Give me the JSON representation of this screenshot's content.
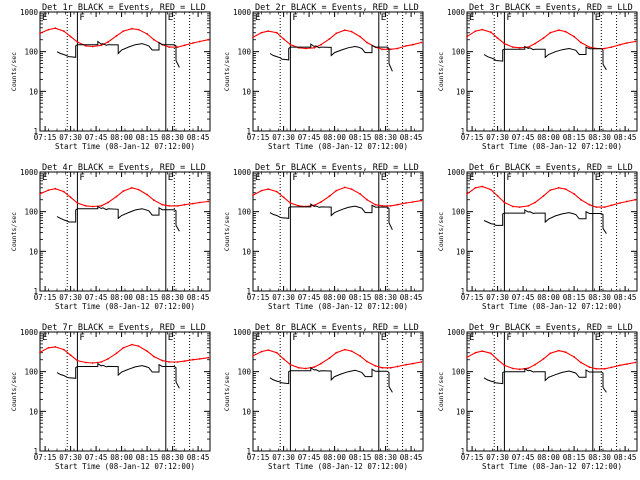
{
  "figure": {
    "colors": {
      "events": "#000000",
      "lld": "#ff0000",
      "axes": "#000000",
      "background": "#ffffff"
    },
    "shared_axes": {
      "xlabel": "Start Time (08-Jan-12 07:12:00)",
      "ylabel": "Counts/sec",
      "x_tick_labels": [
        "07:15",
        "07:30",
        "07:45",
        "08:00",
        "08:15",
        "08:30",
        "08:45"
      ],
      "x_tick_minutes": [
        3,
        18,
        33,
        48,
        63,
        78,
        93
      ],
      "xlim_minutes": [
        0,
        100
      ],
      "y_tick_labels": [
        "1",
        "10",
        "100",
        "1000"
      ],
      "y_tick_values": [
        1,
        10,
        100,
        1000
      ],
      "ylim": [
        1,
        1000
      ],
      "yscale": "log"
    },
    "markers": {
      "dotted_lines_minutes": [
        16,
        79,
        88
      ],
      "solid_lines": [
        {
          "minute": 22,
          "label": "F"
        },
        {
          "minute": 74,
          "label": "E"
        }
      ],
      "left_label": "E"
    }
  },
  "chart_data": [
    {
      "type": "line",
      "title": "Det 1r BLACK = Events, RED = LLD",
      "series": [
        {
          "name": "LLD",
          "x": [
            0,
            5,
            9,
            14,
            18,
            22,
            27,
            31,
            36,
            40,
            45,
            49,
            54,
            58,
            63,
            67,
            72,
            76,
            81,
            85,
            90,
            94,
            99
          ],
          "y": [
            290,
            360,
            390,
            330,
            240,
            175,
            140,
            135,
            145,
            175,
            250,
            330,
            380,
            360,
            280,
            200,
            150,
            130,
            130,
            145,
            165,
            180,
            200
          ]
        },
        {
          "name": "Events",
          "x": [
            10,
            12,
            14,
            16,
            17,
            21,
            21,
            22,
            34,
            34,
            36,
            37,
            39,
            40,
            46,
            46,
            48,
            52,
            56,
            60,
            62,
            64,
            66,
            70,
            70,
            72,
            74,
            79,
            80,
            80,
            82
          ],
          "y": [
            100,
            90,
            85,
            78,
            75,
            72,
            140,
            150,
            150,
            180,
            155,
            160,
            145,
            150,
            148,
            90,
            110,
            130,
            150,
            160,
            150,
            140,
            110,
            110,
            170,
            150,
            150,
            150,
            140,
            60,
            40
          ]
        }
      ]
    },
    {
      "type": "line",
      "title": "Det 2r BLACK = Events, RED = LLD",
      "series": [
        {
          "name": "LLD",
          "x": [
            0,
            5,
            9,
            14,
            18,
            22,
            27,
            31,
            36,
            40,
            45,
            49,
            54,
            58,
            63,
            67,
            72,
            76,
            81,
            85,
            90,
            94,
            99
          ],
          "y": [
            230,
            300,
            330,
            300,
            210,
            150,
            125,
            120,
            125,
            150,
            210,
            290,
            350,
            320,
            240,
            170,
            130,
            115,
            115,
            120,
            140,
            150,
            170
          ]
        },
        {
          "name": "Events",
          "x": [
            10,
            12,
            14,
            16,
            17,
            21,
            21,
            22,
            34,
            34,
            36,
            37,
            39,
            40,
            46,
            46,
            48,
            52,
            56,
            60,
            62,
            64,
            66,
            70,
            70,
            72,
            74,
            79,
            80,
            80,
            82
          ],
          "y": [
            90,
            80,
            75,
            70,
            65,
            62,
            120,
            130,
            130,
            155,
            135,
            140,
            125,
            130,
            128,
            80,
            95,
            110,
            125,
            135,
            130,
            120,
            95,
            95,
            145,
            130,
            130,
            130,
            120,
            50,
            32
          ]
        }
      ]
    },
    {
      "type": "line",
      "title": "Det 3r BLACK = Events, RED = LLD",
      "series": [
        {
          "name": "LLD",
          "x": [
            0,
            5,
            9,
            14,
            18,
            22,
            27,
            31,
            36,
            40,
            45,
            49,
            54,
            58,
            63,
            67,
            72,
            76,
            81,
            85,
            90,
            94,
            99
          ],
          "y": [
            240,
            330,
            360,
            310,
            220,
            160,
            130,
            125,
            130,
            160,
            220,
            300,
            350,
            320,
            240,
            170,
            130,
            120,
            120,
            130,
            150,
            165,
            180
          ]
        },
        {
          "name": "Events",
          "x": [
            10,
            12,
            14,
            16,
            17,
            21,
            21,
            22,
            34,
            34,
            36,
            37,
            39,
            40,
            46,
            46,
            48,
            52,
            56,
            60,
            62,
            64,
            66,
            70,
            70,
            72,
            74,
            79,
            80,
            80,
            82
          ],
          "y": [
            85,
            75,
            70,
            65,
            60,
            58,
            110,
            115,
            115,
            135,
            120,
            125,
            112,
            115,
            115,
            72,
            85,
            100,
            112,
            120,
            115,
            108,
            85,
            85,
            130,
            118,
            118,
            118,
            110,
            48,
            35
          ]
        }
      ]
    },
    {
      "type": "line",
      "title": "Det 4r BLACK = Events, RED = LLD",
      "series": [
        {
          "name": "LLD",
          "x": [
            0,
            5,
            9,
            14,
            18,
            22,
            27,
            31,
            36,
            40,
            45,
            49,
            54,
            58,
            63,
            67,
            72,
            76,
            81,
            85,
            90,
            94,
            99
          ],
          "y": [
            280,
            350,
            380,
            320,
            230,
            165,
            140,
            135,
            140,
            170,
            240,
            330,
            400,
            360,
            270,
            195,
            150,
            140,
            140,
            150,
            160,
            170,
            180
          ]
        },
        {
          "name": "Events",
          "x": [
            10,
            12,
            14,
            16,
            17,
            21,
            21,
            22,
            34,
            34,
            36,
            37,
            39,
            40,
            46,
            46,
            48,
            52,
            56,
            60,
            62,
            64,
            66,
            70,
            70,
            72,
            74,
            79,
            80,
            80,
            82
          ],
          "y": [
            75,
            68,
            62,
            58,
            55,
            55,
            110,
            118,
            118,
            135,
            120,
            125,
            112,
            118,
            115,
            68,
            80,
            95,
            110,
            118,
            112,
            105,
            82,
            82,
            125,
            112,
            112,
            112,
            105,
            45,
            32
          ]
        }
      ]
    },
    {
      "type": "line",
      "title": "Det 5r BLACK = Events, RED = LLD",
      "series": [
        {
          "name": "LLD",
          "x": [
            0,
            5,
            9,
            14,
            18,
            22,
            27,
            31,
            36,
            40,
            45,
            49,
            54,
            58,
            63,
            67,
            72,
            76,
            81,
            85,
            90,
            94,
            99
          ],
          "y": [
            260,
            340,
            370,
            320,
            230,
            165,
            140,
            135,
            145,
            175,
            245,
            340,
            410,
            370,
            280,
            200,
            150,
            140,
            140,
            150,
            165,
            175,
            190
          ]
        },
        {
          "name": "Events",
          "x": [
            10,
            12,
            14,
            16,
            17,
            21,
            21,
            22,
            34,
            34,
            36,
            37,
            39,
            40,
            46,
            46,
            48,
            52,
            56,
            60,
            62,
            64,
            66,
            70,
            70,
            72,
            74,
            79,
            80,
            80,
            82
          ],
          "y": [
            95,
            85,
            80,
            72,
            70,
            68,
            125,
            132,
            132,
            155,
            135,
            140,
            128,
            132,
            130,
            80,
            95,
            112,
            128,
            138,
            130,
            122,
            95,
            95,
            145,
            130,
            130,
            130,
            120,
            52,
            35
          ]
        }
      ]
    },
    {
      "type": "line",
      "title": "Det 6r BLACK = Events, RED = LLD",
      "series": [
        {
          "name": "LLD",
          "x": [
            0,
            5,
            9,
            14,
            18,
            22,
            27,
            31,
            36,
            40,
            45,
            49,
            54,
            58,
            63,
            67,
            72,
            76,
            81,
            85,
            90,
            94,
            99
          ],
          "y": [
            280,
            400,
            430,
            360,
            250,
            170,
            135,
            130,
            140,
            170,
            250,
            350,
            400,
            370,
            280,
            200,
            150,
            130,
            130,
            145,
            165,
            180,
            200
          ]
        },
        {
          "name": "Events",
          "x": [
            10,
            12,
            14,
            16,
            17,
            21,
            21,
            22,
            34,
            34,
            36,
            37,
            39,
            40,
            46,
            46,
            48,
            52,
            56,
            60,
            62,
            64,
            66,
            70,
            70,
            72,
            74,
            79,
            80,
            80,
            82
          ],
          "y": [
            60,
            55,
            50,
            48,
            45,
            45,
            88,
            92,
            92,
            110,
            98,
            100,
            90,
            92,
            92,
            55,
            65,
            78,
            88,
            95,
            90,
            85,
            66,
            66,
            100,
            90,
            90,
            90,
            85,
            38,
            28
          ]
        }
      ]
    },
    {
      "type": "line",
      "title": "Det 7r BLACK = Events, RED = LLD",
      "series": [
        {
          "name": "LLD",
          "x": [
            0,
            5,
            9,
            14,
            18,
            22,
            27,
            31,
            36,
            40,
            45,
            49,
            54,
            58,
            63,
            67,
            72,
            76,
            81,
            85,
            90,
            94,
            99
          ],
          "y": [
            310,
            400,
            420,
            360,
            260,
            190,
            170,
            165,
            175,
            210,
            290,
            400,
            480,
            440,
            330,
            240,
            190,
            175,
            175,
            185,
            200,
            210,
            225
          ]
        },
        {
          "name": "Events",
          "x": [
            10,
            12,
            14,
            16,
            17,
            21,
            21,
            22,
            34,
            34,
            36,
            37,
            39,
            40,
            46,
            46,
            48,
            52,
            56,
            60,
            62,
            64,
            66,
            70,
            70,
            72,
            74,
            79,
            80,
            80,
            82
          ],
          "y": [
            95,
            85,
            80,
            72,
            70,
            68,
            125,
            135,
            135,
            160,
            140,
            145,
            132,
            136,
            134,
            82,
            98,
            115,
            132,
            142,
            135,
            126,
            98,
            98,
            150,
            135,
            135,
            135,
            125,
            55,
            38
          ]
        }
      ]
    },
    {
      "type": "line",
      "title": "Det 8r BLACK = Events, RED = LLD",
      "series": [
        {
          "name": "LLD",
          "x": [
            0,
            5,
            9,
            14,
            18,
            22,
            27,
            31,
            36,
            40,
            45,
            49,
            54,
            58,
            63,
            67,
            72,
            76,
            81,
            85,
            90,
            94,
            99
          ],
          "y": [
            250,
            320,
            350,
            300,
            210,
            150,
            125,
            120,
            130,
            160,
            220,
            300,
            360,
            330,
            250,
            180,
            140,
            125,
            125,
            135,
            150,
            160,
            175
          ]
        },
        {
          "name": "Events",
          "x": [
            10,
            12,
            14,
            16,
            17,
            21,
            21,
            22,
            34,
            34,
            36,
            37,
            39,
            40,
            46,
            46,
            48,
            52,
            56,
            60,
            62,
            64,
            66,
            70,
            70,
            72,
            74,
            79,
            80,
            80,
            82
          ],
          "y": [
            70,
            62,
            58,
            55,
            52,
            50,
            100,
            105,
            105,
            125,
            110,
            112,
            102,
            105,
            104,
            62,
            75,
            88,
            100,
            108,
            102,
            96,
            75,
            75,
            115,
            102,
            102,
            102,
            95,
            42,
            30
          ]
        }
      ]
    },
    {
      "type": "line",
      "title": "Det 9r BLACK = Events, RED = LLD",
      "series": [
        {
          "name": "LLD",
          "x": [
            0,
            5,
            9,
            14,
            18,
            22,
            27,
            31,
            36,
            40,
            45,
            49,
            54,
            58,
            63,
            67,
            72,
            76,
            81,
            85,
            90,
            94,
            99
          ],
          "y": [
            230,
            300,
            330,
            290,
            200,
            145,
            120,
            115,
            122,
            150,
            210,
            290,
            340,
            310,
            235,
            170,
            130,
            118,
            118,
            128,
            145,
            155,
            170
          ]
        },
        {
          "name": "Events",
          "x": [
            10,
            12,
            14,
            16,
            17,
            21,
            21,
            22,
            34,
            34,
            36,
            37,
            39,
            40,
            46,
            46,
            48,
            52,
            56,
            60,
            62,
            64,
            66,
            70,
            70,
            72,
            74,
            79,
            80,
            80,
            82
          ],
          "y": [
            70,
            62,
            58,
            55,
            52,
            50,
            95,
            100,
            100,
            118,
            105,
            108,
            98,
            100,
            100,
            60,
            72,
            84,
            96,
            104,
            98,
            92,
            72,
            72,
            110,
            98,
            98,
            98,
            92,
            40,
            30
          ]
        }
      ]
    }
  ]
}
